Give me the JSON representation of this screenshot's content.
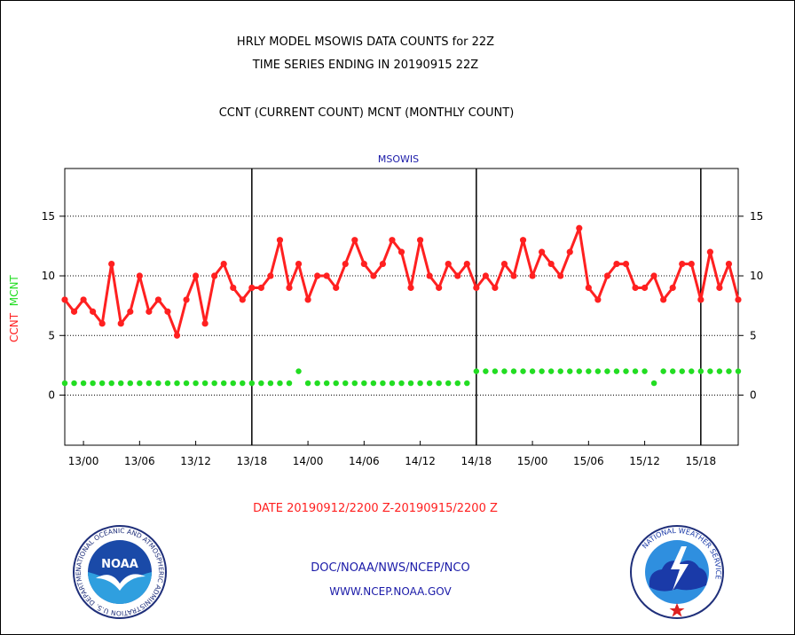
{
  "header": {
    "title_line1": "HRLY MODEL MSOWIS DATA COUNTS for 22Z",
    "title_line2": "TIME SERIES ENDING IN 20190915 22Z",
    "subtitle": "CCNT (CURRENT COUNT) MCNT (MONTHLY COUNT)"
  },
  "footer": {
    "date_range": "DATE 20190912/2200 Z-20190915/2200 Z",
    "org": "DOC/NOAA/NWS/NCEP/NCO",
    "url": "WWW.NCEP.NOAA.GOV"
  },
  "logos": {
    "left_text": "NOAA",
    "left_ring": "NATIONAL OCEANIC AND ATMOSPHERIC ADMINISTRATION U.S. DEPARTMENT OF COMMERCE",
    "right_ring": "NATIONAL WEATHER SERVICE"
  },
  "colors": {
    "ccnt": "#ff2020",
    "mcnt": "#22dd22",
    "panel_title": "#1a1aa8",
    "footer_text": "#1a1aa8"
  },
  "chart_data": {
    "type": "line",
    "panel_title": "MSOWIS",
    "ylabel": {
      "ccnt": "CCNT",
      "mcnt": "MCNT"
    },
    "ylim": [
      -4.2,
      19
    ],
    "yticks": [
      0,
      5,
      10,
      15
    ],
    "grid": "horizontal dotted at y ticks",
    "x_start": "2019-09-12 22:00Z",
    "x_end": "2019-09-15 22:00Z",
    "x_step_hours": 1,
    "xtick_labels": [
      "13/00",
      "13/06",
      "13/12",
      "13/18",
      "14/00",
      "14/06",
      "14/12",
      "14/18",
      "15/00",
      "15/06",
      "15/12",
      "15/18"
    ],
    "day_boundaries": [
      "13/18",
      "14/18",
      "15/18"
    ],
    "series": [
      {
        "name": "CCNT",
        "values": [
          8,
          7,
          8,
          7,
          6,
          11,
          6,
          7,
          10,
          7,
          8,
          7,
          5,
          8,
          10,
          6,
          10,
          11,
          9,
          8,
          9,
          9,
          10,
          13,
          9,
          11,
          8,
          10,
          10,
          9,
          11,
          13,
          11,
          10,
          11,
          13,
          12,
          9,
          13,
          10,
          9,
          11,
          10,
          11,
          9,
          10,
          9,
          11,
          10,
          13,
          10,
          12,
          11,
          10,
          12,
          14,
          9,
          8,
          10,
          11,
          11,
          9,
          9,
          10,
          8,
          9,
          11,
          11,
          8,
          12,
          9,
          11,
          8
        ]
      },
      {
        "name": "MCNT",
        "values": [
          1,
          1,
          1,
          1,
          1,
          1,
          1,
          1,
          1,
          1,
          1,
          1,
          1,
          1,
          1,
          1,
          1,
          1,
          1,
          1,
          1,
          1,
          1,
          1,
          1,
          2,
          1,
          1,
          1,
          1,
          1,
          1,
          1,
          1,
          1,
          1,
          1,
          1,
          1,
          1,
          1,
          1,
          1,
          1,
          2,
          2,
          2,
          2,
          2,
          2,
          2,
          2,
          2,
          2,
          2,
          2,
          2,
          2,
          2,
          2,
          2,
          2,
          2,
          1,
          2,
          2,
          2,
          2,
          2,
          2,
          2,
          2,
          2
        ]
      }
    ]
  }
}
